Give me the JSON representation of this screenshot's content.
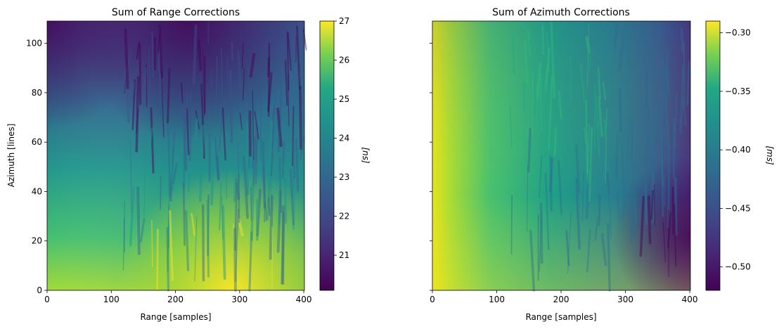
{
  "chart_data": [
    {
      "type": "heatmap",
      "title": "Sum of Range Corrections",
      "xlabel": "Range [samples]",
      "ylabel": "Azimuth [lines]",
      "xlim": [
        0,
        401
      ],
      "ylim": [
        0,
        109
      ],
      "xticks": [
        0,
        100,
        200,
        300,
        400
      ],
      "yticks": [
        0,
        20,
        40,
        60,
        80,
        100
      ],
      "colormap": "viridis",
      "colorbar": {
        "label": "[ns]",
        "vmin": 20.1,
        "vmax": 27.0,
        "ticks": [
          21,
          22,
          23,
          24,
          25,
          26,
          27
        ]
      },
      "field": {
        "description_values": "approximate values at sampled grid points (range, azimuth)",
        "samples": [
          {
            "x": 0,
            "y": 0,
            "v": 25.7
          },
          {
            "x": 150,
            "y": 0,
            "v": 26.2
          },
          {
            "x": 300,
            "y": 0,
            "v": 27.0
          },
          {
            "x": 400,
            "y": 0,
            "v": 26.0
          },
          {
            "x": 0,
            "y": 50,
            "v": 23.0
          },
          {
            "x": 200,
            "y": 50,
            "v": 23.5
          },
          {
            "x": 400,
            "y": 50,
            "v": 22.5
          },
          {
            "x": 0,
            "y": 100,
            "v": 20.8
          },
          {
            "x": 200,
            "y": 100,
            "v": 21.0
          },
          {
            "x": 400,
            "y": 100,
            "v": 21.5
          }
        ]
      }
    },
    {
      "type": "heatmap",
      "title": "Sum of Azimuth Corrections",
      "xlabel": "Range [samples]",
      "ylabel": "",
      "xlim": [
        0,
        401
      ],
      "ylim": [
        0,
        109
      ],
      "xticks": [
        0,
        100,
        200,
        300,
        400
      ],
      "yticks": [
        0,
        20,
        40,
        60,
        80,
        100
      ],
      "colormap": "viridis",
      "colorbar": {
        "label": "[ms]",
        "vmin": -0.52,
        "vmax": -0.29,
        "ticks": [
          -0.5,
          -0.45,
          -0.4,
          -0.35,
          -0.3
        ],
        "tick_labels": [
          "−0.50",
          "−0.45",
          "−0.40",
          "−0.35",
          "−0.30"
        ]
      },
      "field": {
        "description_values": "approximate values at sampled grid points (range, azimuth)",
        "samples": [
          {
            "x": 0,
            "y": 0,
            "v": -0.3
          },
          {
            "x": 200,
            "y": 0,
            "v": -0.41
          },
          {
            "x": 400,
            "y": 0,
            "v": -0.47
          },
          {
            "x": 0,
            "y": 100,
            "v": -0.36
          },
          {
            "x": 200,
            "y": 100,
            "v": -0.41
          },
          {
            "x": 400,
            "y": 100,
            "v": -0.5
          }
        ]
      }
    }
  ]
}
